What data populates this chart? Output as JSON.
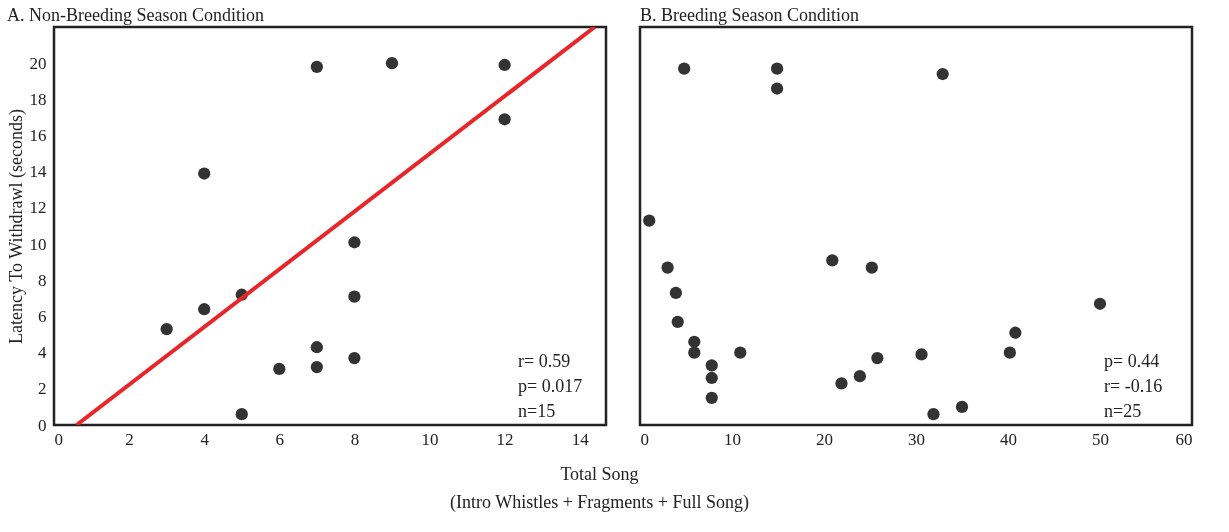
{
  "chart_data": [
    {
      "type": "scatter",
      "title": "A. Non-Breeding Season Condition",
      "ylabel": "Latency To Withdrawl (seconds)",
      "xlabel": "Total Song\n(Intro Whistles + Fragments + Full Song)",
      "series": [
        {
          "color": "#333333",
          "marker": "circle",
          "x": [
            3,
            4,
            4,
            5,
            5,
            6,
            7,
            7,
            7,
            8,
            8,
            8,
            9,
            12,
            12
          ],
          "values": [
            5.3,
            6.4,
            13.9,
            7.2,
            0.6,
            3.1,
            3.2,
            4.3,
            19.8,
            3.7,
            7.1,
            10.1,
            20.0,
            19.9,
            16.9
          ]
        },
        {
          "type": "line",
          "color": "#e8262a",
          "x": [
            0.6,
            14.4
          ],
          "values": [
            0,
            22
          ]
        }
      ],
      "xlim": [
        0,
        14.7
      ],
      "xticks": [
        0,
        2,
        4,
        6,
        8,
        10,
        12,
        14
      ],
      "ylim": [
        0,
        22
      ],
      "yticks": [
        0,
        2,
        4,
        6,
        8,
        10,
        12,
        14,
        16,
        18,
        20
      ],
      "grid": false,
      "annotations": [
        "r= 0.59",
        "p= 0.017",
        "n=15"
      ]
    },
    {
      "type": "scatter",
      "title": "B. Breeding Season Condition",
      "series": [
        {
          "color": "#333333",
          "x": [
            4.8,
            14.9,
            14.9,
            32.9,
            1.0,
            3.0,
            3.9,
            4.1,
            5.9,
            5.9,
            7.8,
            7.8,
            7.8,
            10.9,
            20.9,
            25.2,
            21.9,
            23.9,
            25.8,
            30.6,
            31.9,
            35.0,
            40.2,
            40.8,
            50.0
          ],
          "values": [
            19.7,
            19.7,
            18.6,
            19.4,
            11.3,
            8.7,
            7.3,
            5.7,
            4.6,
            4.0,
            3.3,
            2.6,
            1.5,
            4.0,
            9.1,
            8.7,
            2.3,
            2.7,
            3.7,
            3.9,
            0.6,
            1.0,
            4.0,
            5.1,
            6.7
          ]
        }
      ],
      "xlim": [
        0,
        60
      ],
      "xticks": [
        0,
        10,
        20,
        30,
        40,
        50,
        60
      ],
      "ylim": [
        0,
        22
      ],
      "tick_labels": "x",
      "marker": "circle",
      "grid": false,
      "annotations": [
        "p= 0.44",
        "r= -0.16",
        "n=25"
      ]
    }
  ]
}
